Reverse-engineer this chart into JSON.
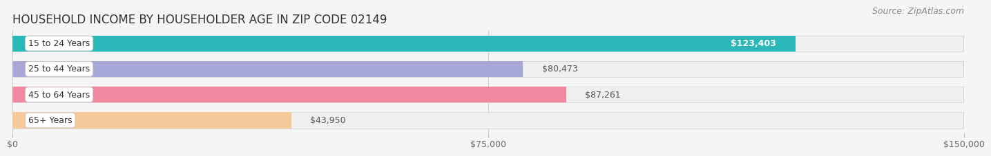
{
  "title": "HOUSEHOLD INCOME BY HOUSEHOLDER AGE IN ZIP CODE 02149",
  "source": "Source: ZipAtlas.com",
  "categories": [
    "15 to 24 Years",
    "25 to 44 Years",
    "45 to 64 Years",
    "65+ Years"
  ],
  "values": [
    123403,
    80473,
    87261,
    43950
  ],
  "bar_colors": [
    "#2ab8b8",
    "#a8a8d8",
    "#f088a0",
    "#f5c99a"
  ],
  "bar_bg_colors": [
    "#efefef",
    "#efefef",
    "#efefef",
    "#efefef"
  ],
  "value_labels": [
    "$123,403",
    "$80,473",
    "$87,261",
    "$43,950"
  ],
  "label_in_bar": [
    true,
    false,
    false,
    false
  ],
  "xlim": [
    0,
    150000
  ],
  "xticks": [
    0,
    75000,
    150000
  ],
  "xtick_labels": [
    "$0",
    "$75,000",
    "$150,000"
  ],
  "title_fontsize": 12,
  "source_fontsize": 9,
  "bar_height": 0.62,
  "figsize": [
    14.06,
    2.33
  ],
  "dpi": 100,
  "bg_color": "#f5f5f5"
}
